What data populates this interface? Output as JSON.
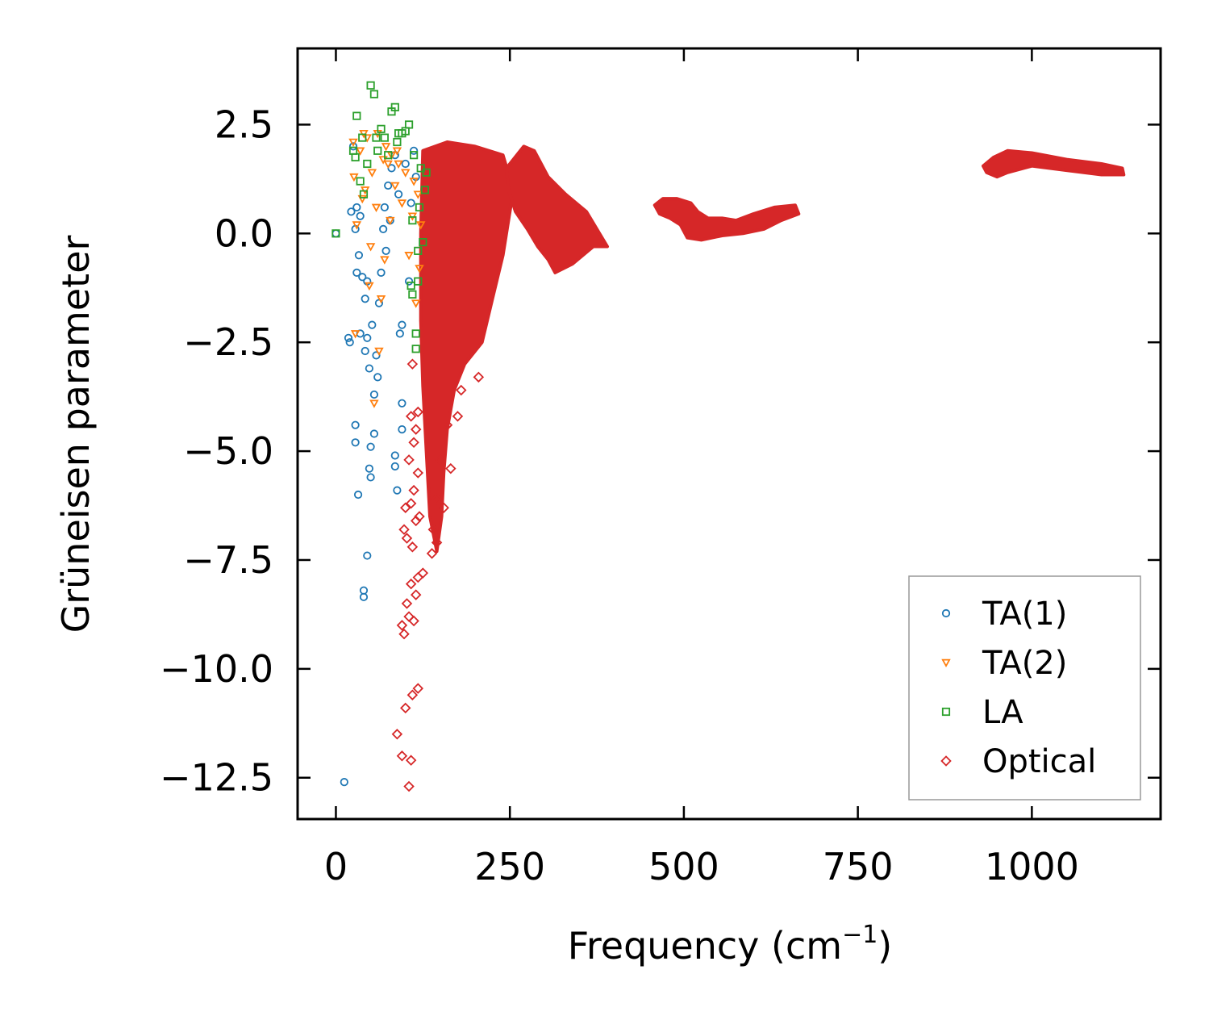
{
  "chart_data": {
    "type": "scatter",
    "title": "",
    "xlabel": "Frequency (cm",
    "xlabel_sup": "−1",
    "xlabel_end": ")",
    "ylabel": "Grüneisen parameter",
    "xlim": [
      -55,
      1185
    ],
    "ylim": [
      -13.45,
      4.25
    ],
    "x_ticks": [
      0,
      250,
      500,
      750,
      1000
    ],
    "x_tick_labels": [
      "0",
      "250",
      "500",
      "750",
      "1000"
    ],
    "y_ticks": [
      2.5,
      0.0,
      -2.5,
      -5.0,
      -7.5,
      -10.0,
      -12.5
    ],
    "y_tick_labels": [
      "2.5",
      "0.0",
      "−2.5",
      "−5.0",
      "−7.5",
      "−10.0",
      "−12.5"
    ],
    "grid": false,
    "legend_position": "lower-right",
    "series": [
      {
        "name": "TA(1)",
        "label": "TA(1)",
        "marker": "circle",
        "color": "#1f77b4",
        "points": [
          [
            0,
            0.0
          ],
          [
            12,
            -12.6
          ],
          [
            18,
            -2.4
          ],
          [
            20,
            -2.5
          ],
          [
            22,
            0.5
          ],
          [
            25,
            2.0
          ],
          [
            28,
            0.1
          ],
          [
            28,
            -4.4
          ],
          [
            28,
            -4.8
          ],
          [
            30,
            0.6
          ],
          [
            30,
            -0.9
          ],
          [
            32,
            -6.0
          ],
          [
            33,
            -0.5
          ],
          [
            35,
            0.4
          ],
          [
            35,
            -2.3
          ],
          [
            38,
            -1.0
          ],
          [
            40,
            -8.2
          ],
          [
            40,
            -8.35
          ],
          [
            42,
            -1.5
          ],
          [
            42,
            -2.7
          ],
          [
            45,
            -7.4
          ],
          [
            45,
            -1.1
          ],
          [
            45,
            -2.4
          ],
          [
            48,
            -5.4
          ],
          [
            48,
            -3.1
          ],
          [
            50,
            -4.9
          ],
          [
            50,
            -5.6
          ],
          [
            52,
            -2.1
          ],
          [
            55,
            -4.6
          ],
          [
            55,
            -3.7
          ],
          [
            58,
            -2.8
          ],
          [
            60,
            -3.3
          ],
          [
            62,
            -1.6
          ],
          [
            65,
            -0.9
          ],
          [
            68,
            0.1
          ],
          [
            70,
            0.6
          ],
          [
            72,
            -0.4
          ],
          [
            75,
            1.1
          ],
          [
            78,
            0.3
          ],
          [
            80,
            1.5
          ],
          [
            85,
            1.8
          ],
          [
            85,
            -5.1
          ],
          [
            85,
            -5.35
          ],
          [
            88,
            -5.9
          ],
          [
            90,
            0.9
          ],
          [
            92,
            -2.3
          ],
          [
            95,
            -2.1
          ],
          [
            95,
            -3.9
          ],
          [
            95,
            -4.5
          ],
          [
            100,
            1.6
          ],
          [
            105,
            -1.1
          ],
          [
            108,
            0.7
          ],
          [
            112,
            1.9
          ],
          [
            115,
            1.3
          ]
        ]
      },
      {
        "name": "TA(2)",
        "label": "TA(2)",
        "marker": "triangle-down",
        "color": "#ff7f0e",
        "points": [
          [
            25,
            2.1
          ],
          [
            26,
            1.3
          ],
          [
            28,
            -2.3
          ],
          [
            30,
            0.2
          ],
          [
            35,
            1.9
          ],
          [
            38,
            0.8
          ],
          [
            40,
            2.3
          ],
          [
            42,
            1.0
          ],
          [
            45,
            2.2
          ],
          [
            48,
            -1.2
          ],
          [
            50,
            -0.3
          ],
          [
            52,
            1.4
          ],
          [
            55,
            -3.9
          ],
          [
            58,
            0.6
          ],
          [
            60,
            2.3
          ],
          [
            62,
            -2.7
          ],
          [
            65,
            -1.5
          ],
          [
            68,
            1.7
          ],
          [
            70,
            -0.6
          ],
          [
            72,
            2.0
          ],
          [
            75,
            1.6
          ],
          [
            78,
            0.3
          ],
          [
            80,
            1.8
          ],
          [
            85,
            1.1
          ],
          [
            88,
            1.9
          ],
          [
            90,
            1.6
          ],
          [
            95,
            0.7
          ],
          [
            100,
            1.4
          ],
          [
            105,
            -0.5
          ],
          [
            110,
            0.4
          ],
          [
            112,
            1.2
          ],
          [
            115,
            -1.6
          ],
          [
            118,
            0.9
          ],
          [
            120,
            -0.8
          ],
          [
            122,
            0.2
          ]
        ]
      },
      {
        "name": "LA",
        "label": "LA",
        "marker": "square",
        "color": "#2ca02c",
        "points": [
          [
            0,
            0.0
          ],
          [
            25,
            1.9
          ],
          [
            28,
            1.75
          ],
          [
            30,
            2.7
          ],
          [
            35,
            1.2
          ],
          [
            38,
            2.2
          ],
          [
            40,
            0.9
          ],
          [
            45,
            1.6
          ],
          [
            50,
            3.4
          ],
          [
            55,
            3.2
          ],
          [
            58,
            2.2
          ],
          [
            60,
            1.9
          ],
          [
            65,
            2.4
          ],
          [
            70,
            2.2
          ],
          [
            75,
            1.8
          ],
          [
            80,
            2.8
          ],
          [
            85,
            2.9
          ],
          [
            88,
            2.1
          ],
          [
            90,
            2.3
          ],
          [
            95,
            2.3
          ],
          [
            100,
            2.35
          ],
          [
            105,
            2.5
          ],
          [
            108,
            -1.2
          ],
          [
            110,
            0.3
          ],
          [
            112,
            1.8
          ],
          [
            115,
            -2.3
          ],
          [
            115,
            -2.65
          ],
          [
            118,
            -1.1
          ],
          [
            120,
            0.6
          ],
          [
            122,
            1.5
          ],
          [
            125,
            -0.2
          ],
          [
            128,
            1.0
          ],
          [
            130,
            1.4
          ],
          [
            110,
            -1.4
          ],
          [
            118,
            -0.4
          ]
        ]
      },
      {
        "name": "Optical",
        "label": "Optical",
        "marker": "diamond",
        "color": "#d62728",
        "points": [
          [
            105,
            -12.7
          ],
          [
            108,
            -12.1
          ],
          [
            95,
            -12.0
          ],
          [
            88,
            -11.5
          ],
          [
            100,
            -10.9
          ],
          [
            110,
            -10.6
          ],
          [
            118,
            -10.45
          ],
          [
            98,
            -9.2
          ],
          [
            95,
            -9.0
          ],
          [
            105,
            -8.8
          ],
          [
            112,
            -8.9
          ],
          [
            115,
            -8.3
          ],
          [
            102,
            -8.5
          ],
          [
            108,
            -8.05
          ],
          [
            118,
            -7.9
          ],
          [
            125,
            -7.8
          ],
          [
            110,
            -7.2
          ],
          [
            102,
            -7.0
          ],
          [
            98,
            -6.8
          ],
          [
            115,
            -6.6
          ],
          [
            120,
            -6.5
          ],
          [
            100,
            -6.3
          ],
          [
            108,
            -6.2
          ],
          [
            112,
            -5.9
          ],
          [
            118,
            -5.5
          ],
          [
            105,
            -5.2
          ],
          [
            112,
            -4.8
          ],
          [
            115,
            -4.5
          ],
          [
            108,
            -4.2
          ],
          [
            118,
            -4.1
          ],
          [
            110,
            -3.0
          ],
          [
            205,
            -3.3
          ],
          [
            180,
            -3.6
          ],
          [
            175,
            -4.2
          ],
          [
            160,
            -4.4
          ],
          [
            150,
            -5.2
          ],
          [
            145,
            -6.1
          ],
          [
            140,
            -6.8
          ],
          [
            138,
            -7.35
          ],
          [
            145,
            -7.1
          ],
          [
            155,
            -6.3
          ],
          [
            165,
            -5.4
          ]
        ],
        "regions": [
          {
            "label": "dense-band-150",
            "polygon": [
              [
                125,
                1.9
              ],
              [
                160,
                2.1
              ],
              [
                200,
                2.0
              ],
              [
                240,
                1.8
              ],
              [
                255,
                1.0
              ],
              [
                240,
                -0.5
              ],
              [
                225,
                -1.5
              ],
              [
                210,
                -2.5
              ],
              [
                185,
                -3.0
              ],
              [
                170,
                -3.6
              ],
              [
                160,
                -4.5
              ],
              [
                155,
                -5.5
              ],
              [
                152,
                -6.5
              ],
              [
                145,
                -7.3
              ],
              [
                135,
                -6.5
              ],
              [
                130,
                -5.0
              ],
              [
                125,
                -3.5
              ],
              [
                122,
                -2.0
              ],
              [
                122,
                0.0
              ]
            ]
          },
          {
            "label": "band-280",
            "polygon": [
              [
                245,
                1.5
              ],
              [
                270,
                2.0
              ],
              [
                285,
                1.9
              ],
              [
                305,
                1.3
              ],
              [
                330,
                0.9
              ],
              [
                360,
                0.5
              ],
              [
                390,
                -0.3
              ],
              [
                370,
                -0.3
              ],
              [
                340,
                -0.7
              ],
              [
                315,
                -0.9
              ],
              [
                305,
                -0.6
              ],
              [
                290,
                -0.3
              ],
              [
                275,
                0.1
              ],
              [
                258,
                0.5
              ],
              [
                248,
                1.0
              ]
            ]
          },
          {
            "label": "band-480",
            "polygon": [
              [
                458,
                0.65
              ],
              [
                470,
                0.8
              ],
              [
                490,
                0.8
              ],
              [
                510,
                0.7
              ],
              [
                520,
                0.5
              ],
              [
                535,
                0.35
              ],
              [
                555,
                0.35
              ],
              [
                575,
                0.3
              ],
              [
                600,
                0.45
              ],
              [
                630,
                0.6
              ],
              [
                660,
                0.65
              ],
              [
                665,
                0.45
              ],
              [
                640,
                0.3
              ],
              [
                615,
                0.1
              ],
              [
                585,
                0.0
              ],
              [
                555,
                -0.05
              ],
              [
                525,
                -0.15
              ],
              [
                505,
                -0.1
              ],
              [
                495,
                0.2
              ],
              [
                480,
                0.35
              ],
              [
                465,
                0.45
              ]
            ]
          },
          {
            "label": "band-1050",
            "polygon": [
              [
                930,
                1.55
              ],
              [
                945,
                1.75
              ],
              [
                965,
                1.9
              ],
              [
                1000,
                1.85
              ],
              [
                1050,
                1.7
              ],
              [
                1100,
                1.6
              ],
              [
                1130,
                1.5
              ],
              [
                1132,
                1.35
              ],
              [
                1100,
                1.35
              ],
              [
                1050,
                1.45
              ],
              [
                1000,
                1.55
              ],
              [
                965,
                1.4
              ],
              [
                950,
                1.3
              ],
              [
                935,
                1.4
              ]
            ]
          }
        ]
      }
    ]
  }
}
